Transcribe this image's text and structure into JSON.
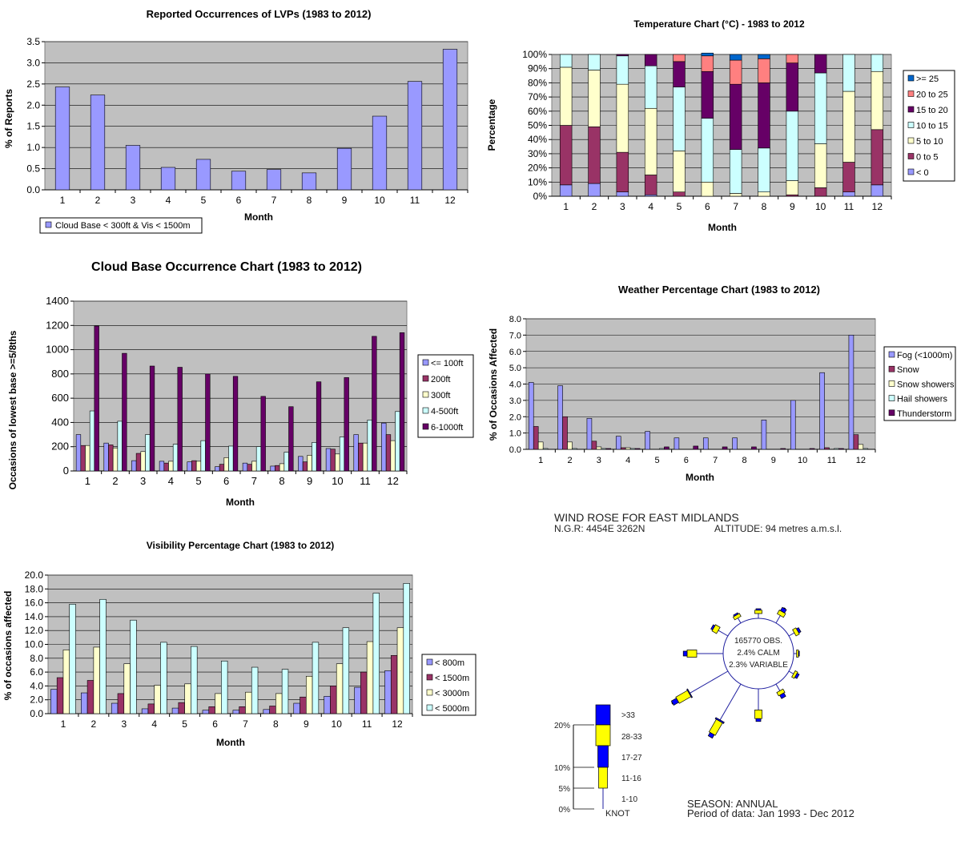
{
  "colors": {
    "plot_bg": "#c0c0c0",
    "purple": "#9999ff",
    "plum": "#993366",
    "cream": "#ffffcc",
    "lightcyan": "#ccffff",
    "darkpurple": "#660066",
    "salmon": "#ff8080",
    "blue": "#0066cc",
    "rose_blue": "#0000ff",
    "rose_yellow": "#ffff00"
  },
  "chart_data": [
    {
      "id": "lvp",
      "type": "bar",
      "title": "Reported Occurrences of LVPs (1983 to 2012)",
      "xlabel": "Month",
      "ylabel": "% of Reports",
      "ylim": [
        0,
        3.5
      ],
      "yticks": [
        "0.0",
        "0.5",
        "1.0",
        "1.5",
        "2.0",
        "2.5",
        "3.0",
        "3.5"
      ],
      "categories": [
        "1",
        "2",
        "3",
        "4",
        "5",
        "6",
        "7",
        "8",
        "9",
        "10",
        "11",
        "12"
      ],
      "series": [
        {
          "name": "Cloud Base < 300ft & Vis < 1500m",
          "color": "#9999ff",
          "values": [
            2.43,
            2.24,
            1.05,
            0.53,
            0.72,
            0.44,
            0.48,
            0.4,
            0.98,
            1.74,
            2.56,
            3.32
          ]
        }
      ],
      "grid": true,
      "legend": "bottom-left"
    },
    {
      "id": "temp",
      "type": "bar",
      "stacked": true,
      "title": "Temperature Chart (°C) - 1983 to 2012",
      "xlabel": "Month",
      "ylabel": "Percentage",
      "ylim": [
        0,
        100
      ],
      "yticks": [
        "0%",
        "10%",
        "20%",
        "30%",
        "40%",
        "50%",
        "60%",
        "70%",
        "80%",
        "90%",
        "100%"
      ],
      "categories": [
        "1",
        "2",
        "3",
        "4",
        "5",
        "6",
        "7",
        "8",
        "9",
        "10",
        "11",
        "12"
      ],
      "series": [
        {
          "name": "< 0",
          "color": "#9999ff",
          "values": [
            8,
            9,
            3,
            1,
            0,
            0,
            0,
            0,
            0,
            0,
            3,
            8
          ]
        },
        {
          "name": "0 to 5",
          "color": "#993366",
          "values": [
            42,
            40,
            28,
            14,
            3,
            0,
            0,
            0,
            1,
            6,
            21,
            39
          ]
        },
        {
          "name": "5 to 10",
          "color": "#ffffcc",
          "values": [
            41,
            40,
            48,
            47,
            29,
            10,
            2,
            3,
            10,
            31,
            50,
            41
          ]
        },
        {
          "name": "10 to 15",
          "color": "#ccffff",
          "values": [
            9,
            11,
            20,
            30,
            45,
            45,
            31,
            31,
            49,
            50,
            26,
            12
          ]
        },
        {
          "name": "15 to 20",
          "color": "#660066",
          "values": [
            0,
            0,
            1,
            8,
            18,
            33,
            46,
            46,
            34,
            13,
            0,
            0
          ]
        },
        {
          "name": "20 to 25",
          "color": "#ff8080",
          "values": [
            0,
            0,
            0,
            0,
            5,
            11,
            17,
            17,
            6,
            0,
            0,
            0
          ]
        },
        {
          "name": ">= 25",
          "color": "#0066cc",
          "values": [
            0,
            0,
            0,
            0,
            0,
            2,
            4,
            3,
            0,
            0,
            0,
            0
          ]
        }
      ],
      "legend": "right"
    },
    {
      "id": "cloud",
      "type": "bar",
      "title": "Cloud Base Occurrence Chart (1983 to 2012)",
      "xlabel": "Month",
      "ylabel": "Occasions of lowest base >=5/8ths",
      "ylim": [
        0,
        1400
      ],
      "yticks": [
        "0",
        "200",
        "400",
        "600",
        "800",
        "1000",
        "1200",
        "1400"
      ],
      "categories": [
        "1",
        "2",
        "3",
        "4",
        "5",
        "6",
        "7",
        "8",
        "9",
        "10",
        "11",
        "12"
      ],
      "series": [
        {
          "name": "<= 100ft",
          "color": "#9999ff",
          "values": [
            300,
            230,
            85,
            80,
            75,
            35,
            65,
            40,
            120,
            185,
            300,
            395
          ]
        },
        {
          "name": "200ft",
          "color": "#993366",
          "values": [
            210,
            215,
            145,
            65,
            85,
            55,
            55,
            45,
            75,
            180,
            230,
            300
          ]
        },
        {
          "name": "300ft",
          "color": "#ffffcc",
          "values": [
            210,
            190,
            160,
            80,
            80,
            110,
            80,
            60,
            130,
            140,
            230,
            250
          ]
        },
        {
          "name": "4-500ft",
          "color": "#ccffff",
          "values": [
            495,
            410,
            300,
            220,
            250,
            205,
            200,
            155,
            235,
            280,
            420,
            490
          ]
        },
        {
          "name": "6-1000ft",
          "color": "#660066",
          "values": [
            1195,
            970,
            865,
            855,
            800,
            780,
            615,
            530,
            735,
            770,
            1110,
            1140
          ]
        }
      ],
      "grid": true,
      "legend": "right"
    },
    {
      "id": "weather",
      "type": "bar",
      "title": "Weather Percentage Chart (1983 to 2012)",
      "xlabel": "Month",
      "ylabel": "% of Occasions Affected",
      "ylim": [
        0,
        8
      ],
      "yticks": [
        "0.0",
        "1.0",
        "2.0",
        "3.0",
        "4.0",
        "5.0",
        "6.0",
        "7.0",
        "8.0"
      ],
      "categories": [
        "1",
        "2",
        "3",
        "4",
        "5",
        "6",
        "7",
        "8",
        "9",
        "10",
        "11",
        "12"
      ],
      "series": [
        {
          "name": "Fog (<1000m)",
          "color": "#9999ff",
          "values": [
            4.1,
            3.9,
            1.9,
            0.8,
            1.1,
            0.7,
            0.7,
            0.7,
            1.8,
            3.0,
            4.7,
            7.0
          ]
        },
        {
          "name": "Snow",
          "color": "#993366",
          "values": [
            1.4,
            2.0,
            0.5,
            0.1,
            0.0,
            0.0,
            0.0,
            0.0,
            0.0,
            0.0,
            0.1,
            0.9
          ]
        },
        {
          "name": "Snow showers",
          "color": "#ffffcc",
          "values": [
            0.45,
            0.45,
            0.15,
            0.1,
            0.0,
            0.0,
            0.0,
            0.0,
            0.0,
            0.0,
            0.0,
            0.3
          ]
        },
        {
          "name": "Hail showers",
          "color": "#ccffff",
          "values": [
            0.05,
            0.05,
            0.05,
            0.05,
            0.05,
            0.0,
            0.0,
            0.0,
            0.0,
            0.0,
            0.05,
            0.05
          ]
        },
        {
          "name": "Thunderstorm",
          "color": "#660066",
          "values": [
            0.0,
            0.0,
            0.05,
            0.05,
            0.15,
            0.2,
            0.15,
            0.15,
            0.05,
            0.05,
            0.05,
            0.0
          ]
        }
      ],
      "grid": true,
      "legend": "right"
    },
    {
      "id": "vis",
      "type": "bar",
      "title": "Visibility Percentage Chart (1983 to 2012)",
      "xlabel": "Month",
      "ylabel": "% of occasions affected",
      "ylim": [
        0,
        20
      ],
      "yticks": [
        "0.0",
        "2.0",
        "4.0",
        "6.0",
        "8.0",
        "10.0",
        "12.0",
        "14.0",
        "16.0",
        "18.0",
        "20.0"
      ],
      "categories": [
        "1",
        "2",
        "3",
        "4",
        "5",
        "6",
        "7",
        "8",
        "9",
        "10",
        "11",
        "12"
      ],
      "series": [
        {
          "name": "< 800m",
          "color": "#9999ff",
          "values": [
            3.5,
            3.0,
            1.5,
            0.7,
            0.8,
            0.5,
            0.5,
            0.6,
            1.5,
            2.5,
            3.8,
            6.2
          ]
        },
        {
          "name": "< 1500m",
          "color": "#993366",
          "values": [
            5.2,
            4.8,
            2.9,
            1.4,
            1.6,
            1.0,
            1.0,
            1.1,
            2.4,
            4.0,
            6.0,
            8.4
          ]
        },
        {
          "name": "< 3000m",
          "color": "#ffffcc",
          "values": [
            9.2,
            9.6,
            7.2,
            4.1,
            4.3,
            2.9,
            3.1,
            2.9,
            5.4,
            7.2,
            10.4,
            12.4
          ]
        },
        {
          "name": "< 5000m",
          "color": "#ccffff",
          "values": [
            15.8,
            16.5,
            13.5,
            10.3,
            9.7,
            7.6,
            6.7,
            6.4,
            10.3,
            12.4,
            17.4,
            18.8
          ]
        }
      ],
      "grid": true,
      "legend": "right"
    }
  ],
  "wind_rose": {
    "title": "WIND ROSE FOR EAST MIDLANDS",
    "ngr": "N.G.R: 4454E 3262N",
    "altitude": "ALTITUDE:   94 metres a.m.s.l.",
    "center_lines": [
      "165770 OBS.",
      "2.4% CALM",
      "2.3% VARIABLE"
    ],
    "scale_ticks": [
      "20%",
      "10%",
      "5%",
      "0%"
    ],
    "scale_unit": "KNOT",
    "speed_classes": [
      ">33",
      "28-33",
      "17-27",
      "11-16",
      "1-10"
    ],
    "season": "SEASON: ANNUAL",
    "period": "Period of data: Jan 1993 - Dec 2012",
    "directions_deg": [
      0,
      30,
      60,
      90,
      120,
      150,
      180,
      210,
      240,
      270,
      300,
      330
    ],
    "spokes_percent": [
      1.0,
      1.8,
      1.3,
      0.6,
      1.1,
      1.6,
      4.4,
      8.6,
      9.1,
      5.5,
      2.3,
      1.2
    ],
    "bars_percent": [
      [
        0.0,
        0.7,
        0.3,
        0.0
      ],
      [
        0.0,
        0.9,
        0.8,
        0.1
      ],
      [
        0.0,
        0.8,
        0.5,
        0.0
      ],
      [
        0.0,
        0.4,
        0.2,
        0.0
      ],
      [
        0.0,
        0.6,
        0.5,
        0.0
      ],
      [
        0.0,
        0.8,
        0.8,
        0.0
      ],
      [
        0.0,
        1.8,
        0.6,
        0.0
      ],
      [
        0.3,
        3.0,
        0.8,
        0.0
      ],
      [
        0.2,
        2.8,
        1.2,
        0.1
      ],
      [
        0.0,
        2.0,
        0.8,
        0.0
      ],
      [
        0.0,
        1.1,
        0.4,
        0.0
      ],
      [
        0.0,
        0.7,
        0.3,
        0.0
      ]
    ]
  }
}
